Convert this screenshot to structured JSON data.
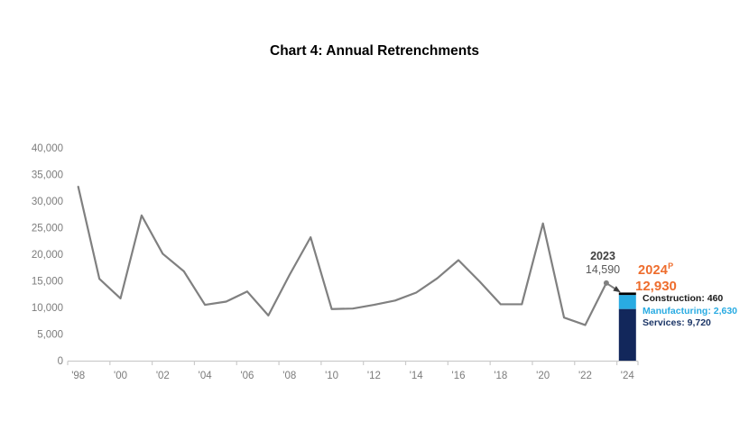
{
  "title": "Chart 4: Annual Retrenchments",
  "ann": {
    "y2023": {
      "year": "2023",
      "value": "14,590"
    },
    "y2024": {
      "year": "2024",
      "sup": "P",
      "value": "12,930"
    },
    "sectors": {
      "construction": "Construction: 460",
      "manufacturing": "Manufacturing: 2,630",
      "services": "Services: 9,720"
    }
  },
  "colors": {
    "line": "#808080",
    "marker": "#808080",
    "arrow": "#3d3d3d",
    "orange": "#EE6D2D",
    "construction": "#000000",
    "manufacturing": "#29ABE2",
    "services": "#12275B",
    "services_text": "#1C3667",
    "construction_text": "#1a1a1a",
    "axis_line": "#cccccc",
    "tick_text": "#7c7c7c"
  },
  "chart_data": {
    "type": "line+bar",
    "title": "Chart 4: Annual Retrenchments",
    "x": [
      1998,
      1999,
      2000,
      2001,
      2002,
      2003,
      2004,
      2005,
      2006,
      2007,
      2008,
      2009,
      2010,
      2011,
      2012,
      2013,
      2014,
      2015,
      2016,
      2017,
      2018,
      2019,
      2020,
      2021,
      2022,
      2023
    ],
    "line_series": {
      "name": "Annual retrenchments",
      "values": [
        32700,
        15400,
        11700,
        27300,
        20100,
        16800,
        10500,
        11100,
        13000,
        8500,
        16100,
        23200,
        9700,
        9800,
        10500,
        11300,
        12800,
        15500,
        18900,
        14900,
        10600,
        10600,
        25800,
        8100,
        6700,
        14590
      ]
    },
    "bar_2024": {
      "year": 2024,
      "total": 12930,
      "segments_bottom_to_top": [
        {
          "name": "Services",
          "value": 9720
        },
        {
          "name": "Manufacturing",
          "value": 2630
        },
        {
          "name": "Construction",
          "value": 460
        }
      ]
    },
    "ylim": [
      0,
      40000
    ],
    "y_tick_step": 5000,
    "y_tick_labels": [
      "0",
      "5,000",
      "10,000",
      "15,000",
      "20,000",
      "25,000",
      "30,000",
      "35,000",
      "40,000"
    ],
    "x_tick_labels": [
      "'98",
      "'00",
      "'02",
      "'04",
      "'06",
      "'08",
      "'10",
      "'12",
      "'14",
      "'16",
      "'18",
      "'20",
      "'22",
      "'24"
    ],
    "grid": "off",
    "legend": "inline-annotations"
  }
}
